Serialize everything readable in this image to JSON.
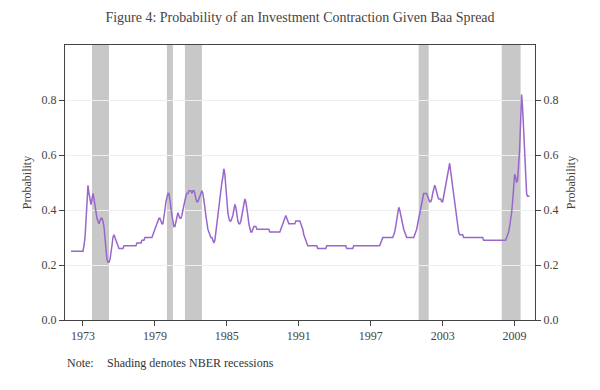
{
  "chart_data": {
    "type": "line",
    "title": "Figure 4: Probability of an Investment Contraction Given Baa Spread",
    "ylabel": "Probability",
    "y2label": "Probability",
    "annotations": [
      "Note:",
      "Shading denotes NBER recessions"
    ],
    "color": "#9966CC",
    "grid": "y",
    "xlim": [
      1971.5,
      2010.7
    ],
    "xticks": [
      1973,
      1979,
      1985,
      1991,
      1997,
      2003,
      2009
    ],
    "ylim": [
      0.0,
      1.0
    ],
    "yticks": [
      {
        "value": 0.0,
        "label": "0.0"
      },
      0.2,
      0.4,
      0.6,
      0.8
    ],
    "y2lim": [
      0.0,
      1.0
    ],
    "y2ticks": [
      {
        "value": 0.0,
        "label": "0.0"
      },
      0.2,
      0.4,
      0.6,
      0.8
    ],
    "bands": {
      "color": "#C8C8C8",
      "spans": [
        [
          1973.75,
          1975.17
        ],
        [
          1980.0,
          1980.5
        ],
        [
          1981.5,
          1982.92
        ],
        [
          2001.0,
          2001.83
        ],
        [
          2007.92,
          2009.5
        ]
      ]
    },
    "x": [
      1972.0,
      1972.083,
      1972.167,
      1972.25,
      1972.333,
      1972.417,
      1972.5,
      1972.583,
      1972.667,
      1972.75,
      1972.833,
      1972.917,
      1973.0,
      1973.083,
      1973.167,
      1973.25,
      1973.333,
      1973.417,
      1973.5,
      1973.583,
      1973.667,
      1973.75,
      1973.833,
      1973.917,
      1974.0,
      1974.083,
      1974.167,
      1974.25,
      1974.333,
      1974.417,
      1974.5,
      1974.583,
      1974.667,
      1974.75,
      1974.833,
      1974.917,
      1975.0,
      1975.083,
      1975.167,
      1975.25,
      1975.333,
      1975.417,
      1975.5,
      1975.583,
      1975.667,
      1975.75,
      1975.833,
      1975.917,
      1976.0,
      1976.083,
      1976.167,
      1976.25,
      1976.333,
      1976.417,
      1976.5,
      1976.583,
      1976.667,
      1976.75,
      1976.833,
      1976.917,
      1977.0,
      1977.083,
      1977.167,
      1977.25,
      1977.333,
      1977.417,
      1977.5,
      1977.583,
      1977.667,
      1977.75,
      1977.833,
      1977.917,
      1978.0,
      1978.083,
      1978.167,
      1978.25,
      1978.333,
      1978.417,
      1978.5,
      1978.583,
      1978.667,
      1978.75,
      1978.833,
      1978.917,
      1979.0,
      1979.083,
      1979.167,
      1979.25,
      1979.333,
      1979.417,
      1979.5,
      1979.583,
      1979.667,
      1979.75,
      1979.833,
      1979.917,
      1980.0,
      1980.083,
      1980.167,
      1980.25,
      1980.333,
      1980.417,
      1980.5,
      1980.583,
      1980.667,
      1980.75,
      1980.833,
      1980.917,
      1981.0,
      1981.083,
      1981.167,
      1981.25,
      1981.333,
      1981.417,
      1981.5,
      1981.583,
      1981.667,
      1981.75,
      1981.833,
      1981.917,
      1982.0,
      1982.083,
      1982.167,
      1982.25,
      1982.333,
      1982.417,
      1982.5,
      1982.583,
      1982.667,
      1982.75,
      1982.833,
      1982.917,
      1983.0,
      1983.083,
      1983.167,
      1983.25,
      1983.333,
      1983.417,
      1983.5,
      1983.583,
      1983.667,
      1983.75,
      1983.833,
      1983.917,
      1984.0,
      1984.083,
      1984.167,
      1984.25,
      1984.333,
      1984.417,
      1984.5,
      1984.583,
      1984.667,
      1984.75,
      1984.833,
      1984.917,
      1985.0,
      1985.083,
      1985.167,
      1985.25,
      1985.333,
      1985.417,
      1985.5,
      1985.583,
      1985.667,
      1985.75,
      1985.833,
      1985.917,
      1986.0,
      1986.083,
      1986.167,
      1986.25,
      1986.333,
      1986.417,
      1986.5,
      1986.583,
      1986.667,
      1986.75,
      1986.833,
      1986.917,
      1987.0,
      1987.083,
      1987.167,
      1987.25,
      1987.333,
      1987.417,
      1987.5,
      1987.583,
      1987.667,
      1987.75,
      1987.833,
      1987.917,
      1988.0,
      1988.083,
      1988.167,
      1988.25,
      1988.333,
      1988.417,
      1988.5,
      1988.583,
      1988.667,
      1988.75,
      1988.833,
      1988.917,
      1989.0,
      1989.083,
      1989.167,
      1989.25,
      1989.333,
      1989.417,
      1989.5,
      1989.583,
      1989.667,
      1989.75,
      1989.833,
      1989.917,
      1990.0,
      1990.083,
      1990.167,
      1990.25,
      1990.333,
      1990.417,
      1990.5,
      1990.583,
      1990.667,
      1990.75,
      1990.833,
      1990.917,
      1991.0,
      1991.083,
      1991.167,
      1991.25,
      1991.333,
      1991.417,
      1991.5,
      1991.583,
      1991.667,
      1991.75,
      1991.833,
      1991.917,
      1992.0,
      1992.083,
      1992.167,
      1992.25,
      1992.333,
      1992.417,
      1992.5,
      1992.583,
      1992.667,
      1992.75,
      1992.833,
      1992.917,
      1993.0,
      1993.083,
      1993.167,
      1993.25,
      1993.333,
      1993.417,
      1993.5,
      1993.583,
      1993.667,
      1993.75,
      1993.833,
      1993.917,
      1994.0,
      1994.083,
      1994.167,
      1994.25,
      1994.333,
      1994.417,
      1994.5,
      1994.583,
      1994.667,
      1994.75,
      1994.833,
      1994.917,
      1995.0,
      1995.083,
      1995.167,
      1995.25,
      1995.333,
      1995.417,
      1995.5,
      1995.583,
      1995.667,
      1995.75,
      1995.833,
      1995.917,
      1996.0,
      1996.083,
      1996.167,
      1996.25,
      1996.333,
      1996.417,
      1996.5,
      1996.583,
      1996.667,
      1996.75,
      1996.833,
      1996.917,
      1997.0,
      1997.083,
      1997.167,
      1997.25,
      1997.333,
      1997.417,
      1997.5,
      1997.583,
      1997.667,
      1997.75,
      1997.833,
      1997.917,
      1998.0,
      1998.083,
      1998.167,
      1998.25,
      1998.333,
      1998.417,
      1998.5,
      1998.583,
      1998.667,
      1998.75,
      1998.833,
      1998.917,
      1999.0,
      1999.083,
      1999.167,
      1999.25,
      1999.333,
      1999.417,
      1999.5,
      1999.583,
      1999.667,
      1999.75,
      1999.833,
      1999.917,
      2000.0,
      2000.083,
      2000.167,
      2000.25,
      2000.333,
      2000.417,
      2000.5,
      2000.583,
      2000.667,
      2000.75,
      2000.833,
      2000.917,
      2001.0,
      2001.083,
      2001.167,
      2001.25,
      2001.333,
      2001.417,
      2001.5,
      2001.583,
      2001.667,
      2001.75,
      2001.833,
      2001.917,
      2002.0,
      2002.083,
      2002.167,
      2002.25,
      2002.333,
      2002.417,
      2002.5,
      2002.583,
      2002.667,
      2002.75,
      2002.833,
      2002.917,
      2003.0,
      2003.083,
      2003.167,
      2003.25,
      2003.333,
      2003.417,
      2003.5,
      2003.583,
      2003.667,
      2003.75,
      2003.833,
      2003.917,
      2004.0,
      2004.083,
      2004.167,
      2004.25,
      2004.333,
      2004.417,
      2004.5,
      2004.583,
      2004.667,
      2004.75,
      2004.833,
      2004.917,
      2005.0,
      2005.083,
      2005.167,
      2005.25,
      2005.333,
      2005.417,
      2005.5,
      2005.583,
      2005.667,
      2005.75,
      2005.833,
      2005.917,
      2006.0,
      2006.083,
      2006.167,
      2006.25,
      2006.333,
      2006.417,
      2006.5,
      2006.583,
      2006.667,
      2006.75,
      2006.833,
      2006.917,
      2007.0,
      2007.083,
      2007.167,
      2007.25,
      2007.333,
      2007.417,
      2007.5,
      2007.583,
      2007.667,
      2007.75,
      2007.833,
      2007.917,
      2008.0,
      2008.083,
      2008.167,
      2008.25,
      2008.333,
      2008.417,
      2008.5,
      2008.583,
      2008.667,
      2008.75,
      2008.833,
      2008.917,
      2009.0,
      2009.083,
      2009.167,
      2009.25,
      2009.333,
      2009.417,
      2009.5,
      2009.583,
      2009.667,
      2009.75,
      2009.833,
      2009.917,
      2010.0,
      2010.083,
      2010.167,
      2010.25
    ],
    "values": [
      0.25,
      0.25,
      0.25,
      0.25,
      0.25,
      0.25,
      0.25,
      0.25,
      0.25,
      0.25,
      0.25,
      0.25,
      0.25,
      0.27,
      0.3,
      0.36,
      0.43,
      0.49,
      0.46,
      0.43,
      0.42,
      0.44,
      0.46,
      0.44,
      0.41,
      0.39,
      0.37,
      0.36,
      0.35,
      0.36,
      0.37,
      0.37,
      0.36,
      0.34,
      0.29,
      0.25,
      0.22,
      0.21,
      0.21,
      0.22,
      0.24,
      0.27,
      0.3,
      0.31,
      0.3,
      0.29,
      0.28,
      0.27,
      0.26,
      0.26,
      0.26,
      0.26,
      0.26,
      0.27,
      0.27,
      0.27,
      0.27,
      0.27,
      0.27,
      0.27,
      0.27,
      0.27,
      0.27,
      0.27,
      0.27,
      0.27,
      0.28,
      0.28,
      0.28,
      0.28,
      0.28,
      0.29,
      0.29,
      0.29,
      0.3,
      0.3,
      0.3,
      0.3,
      0.3,
      0.3,
      0.3,
      0.3,
      0.31,
      0.32,
      0.33,
      0.34,
      0.35,
      0.36,
      0.37,
      0.37,
      0.36,
      0.35,
      0.35,
      0.37,
      0.4,
      0.43,
      0.45,
      0.46,
      0.46,
      0.44,
      0.41,
      0.38,
      0.35,
      0.34,
      0.34,
      0.36,
      0.38,
      0.39,
      0.38,
      0.37,
      0.37,
      0.38,
      0.4,
      0.42,
      0.44,
      0.45,
      0.46,
      0.46,
      0.47,
      0.47,
      0.47,
      0.46,
      0.47,
      0.47,
      0.46,
      0.44,
      0.43,
      0.43,
      0.44,
      0.45,
      0.46,
      0.47,
      0.46,
      0.44,
      0.41,
      0.38,
      0.35,
      0.33,
      0.32,
      0.31,
      0.3,
      0.3,
      0.29,
      0.28,
      0.29,
      0.32,
      0.36,
      0.4,
      0.43,
      0.46,
      0.48,
      0.5,
      0.52,
      0.55,
      0.53,
      0.47,
      0.43,
      0.39,
      0.37,
      0.36,
      0.36,
      0.37,
      0.38,
      0.4,
      0.42,
      0.41,
      0.38,
      0.36,
      0.35,
      0.35,
      0.36,
      0.38,
      0.41,
      0.43,
      0.44,
      0.43,
      0.41,
      0.38,
      0.35,
      0.33,
      0.32,
      0.32,
      0.33,
      0.34,
      0.34,
      0.34,
      0.33,
      0.33,
      0.33,
      0.33,
      0.33,
      0.33,
      0.33,
      0.33,
      0.33,
      0.33,
      0.33,
      0.33,
      0.33,
      0.32,
      0.32,
      0.32,
      0.32,
      0.32,
      0.32,
      0.32,
      0.32,
      0.32,
      0.32,
      0.32,
      0.33,
      0.34,
      0.35,
      0.36,
      0.37,
      0.38,
      0.37,
      0.36,
      0.35,
      0.35,
      0.35,
      0.35,
      0.35,
      0.35,
      0.35,
      0.36,
      0.36,
      0.36,
      0.36,
      0.36,
      0.35,
      0.34,
      0.33,
      0.31,
      0.3,
      0.29,
      0.28,
      0.27,
      0.27,
      0.27,
      0.27,
      0.27,
      0.27,
      0.27,
      0.27,
      0.27,
      0.27,
      0.26,
      0.26,
      0.26,
      0.26,
      0.26,
      0.26,
      0.26,
      0.26,
      0.26,
      0.27,
      0.27,
      0.27,
      0.27,
      0.27,
      0.27,
      0.27,
      0.27,
      0.27,
      0.27,
      0.27,
      0.27,
      0.27,
      0.27,
      0.27,
      0.27,
      0.27,
      0.27,
      0.27,
      0.27,
      0.26,
      0.26,
      0.26,
      0.26,
      0.26,
      0.26,
      0.26,
      0.27,
      0.27,
      0.27,
      0.27,
      0.27,
      0.27,
      0.27,
      0.27,
      0.27,
      0.27,
      0.27,
      0.27,
      0.27,
      0.27,
      0.27,
      0.27,
      0.27,
      0.27,
      0.27,
      0.27,
      0.27,
      0.27,
      0.27,
      0.27,
      0.27,
      0.27,
      0.27,
      0.28,
      0.29,
      0.3,
      0.3,
      0.3,
      0.3,
      0.3,
      0.3,
      0.3,
      0.3,
      0.3,
      0.3,
      0.3,
      0.31,
      0.32,
      0.34,
      0.37,
      0.4,
      0.41,
      0.4,
      0.38,
      0.36,
      0.34,
      0.33,
      0.32,
      0.31,
      0.3,
      0.3,
      0.3,
      0.3,
      0.3,
      0.3,
      0.3,
      0.3,
      0.31,
      0.32,
      0.33,
      0.35,
      0.37,
      0.39,
      0.41,
      0.43,
      0.45,
      0.46,
      0.46,
      0.46,
      0.46,
      0.45,
      0.44,
      0.43,
      0.43,
      0.44,
      0.46,
      0.48,
      0.49,
      0.48,
      0.46,
      0.45,
      0.44,
      0.44,
      0.44,
      0.43,
      0.43,
      0.45,
      0.47,
      0.49,
      0.51,
      0.53,
      0.55,
      0.57,
      0.54,
      0.51,
      0.48,
      0.45,
      0.42,
      0.39,
      0.36,
      0.34,
      0.32,
      0.31,
      0.31,
      0.31,
      0.31,
      0.3,
      0.3,
      0.3,
      0.3,
      0.3,
      0.3,
      0.3,
      0.3,
      0.3,
      0.3,
      0.3,
      0.3,
      0.3,
      0.3,
      0.3,
      0.3,
      0.3,
      0.3,
      0.3,
      0.3,
      0.29,
      0.29,
      0.29,
      0.29,
      0.29,
      0.29,
      0.29,
      0.29,
      0.29,
      0.29,
      0.29,
      0.29,
      0.29,
      0.29,
      0.29,
      0.29,
      0.29,
      0.29,
      0.29,
      0.29,
      0.29,
      0.29,
      0.29,
      0.3,
      0.31,
      0.32,
      0.34,
      0.36,
      0.39,
      0.43,
      0.48,
      0.53,
      0.52,
      0.5,
      0.51,
      0.55,
      0.62,
      0.72,
      0.82,
      0.77,
      0.68,
      0.58,
      0.5,
      0.46,
      0.45,
      0.45,
      0.45
    ]
  }
}
